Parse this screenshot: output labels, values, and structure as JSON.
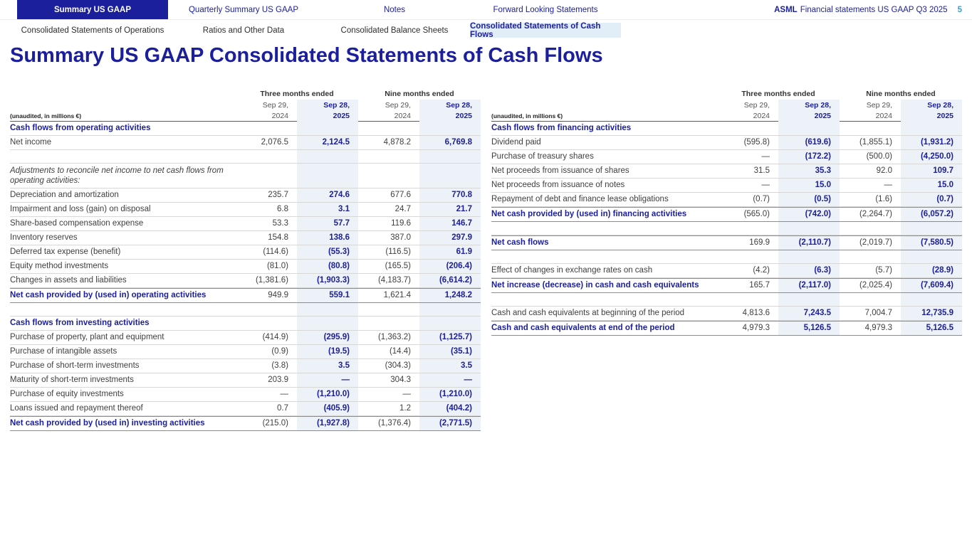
{
  "colors": {
    "navy": "#1b1f9c",
    "page_number_blue": "#3a9fd9",
    "highlight_column_bg": "#edf1f8",
    "active_subnav_bg": "#e1edf7"
  },
  "top_nav": {
    "tabs": [
      {
        "label": "Summary US GAAP",
        "active": true
      },
      {
        "label": "Quarterly Summary US GAAP",
        "active": false
      },
      {
        "label": "Notes",
        "active": false
      },
      {
        "label": "Forward Looking Statements",
        "active": false
      }
    ],
    "brand": "ASML",
    "doc_title": "Financial statements US GAAP Q3 2025",
    "page_number": "5"
  },
  "sub_nav": [
    {
      "label": "Consolidated Statements of Operations",
      "active": false
    },
    {
      "label": "Ratios and Other Data",
      "active": false
    },
    {
      "label": "Consolidated Balance Sheets",
      "active": false
    },
    {
      "label": "Consolidated Statements of Cash Flows",
      "active": true
    }
  ],
  "page_title": "Summary US GAAP Consolidated Statements of Cash Flows",
  "header": {
    "unaudited_note": "(unaudited, in millions €)",
    "group_headers": [
      "Three months ended",
      "Nine months ended"
    ],
    "columns": [
      {
        "line1": "Sep 29,",
        "line2": "2024",
        "highlight": false
      },
      {
        "line1": "Sep 28,",
        "line2": "2025",
        "highlight": true
      },
      {
        "line1": "Sep 29,",
        "line2": "2024",
        "highlight": false
      },
      {
        "line1": "Sep 28,",
        "line2": "2025",
        "highlight": true
      }
    ]
  },
  "tables": {
    "left": {
      "rows": [
        {
          "type": "section",
          "label": "Cash flows from operating activities"
        },
        {
          "type": "data",
          "label": "Net income",
          "values": [
            "2,076.5",
            "2,124.5",
            "4,878.2",
            "6,769.8"
          ]
        },
        {
          "type": "spacer"
        },
        {
          "type": "note",
          "label": "Adjustments to reconcile net income to net cash flows from operating activities:"
        },
        {
          "type": "data",
          "label": "Depreciation and amortization",
          "values": [
            "235.7",
            "274.6",
            "677.6",
            "770.8"
          ]
        },
        {
          "type": "data",
          "label": "Impairment and loss (gain) on disposal",
          "values": [
            "6.8",
            "3.1",
            "24.7",
            "21.7"
          ]
        },
        {
          "type": "data",
          "label": "Share-based compensation expense",
          "values": [
            "53.3",
            "57.7",
            "119.6",
            "146.7"
          ]
        },
        {
          "type": "data",
          "label": "Inventory reserves",
          "values": [
            "154.8",
            "138.6",
            "387.0",
            "297.9"
          ]
        },
        {
          "type": "data",
          "label": "Deferred tax expense (benefit)",
          "values": [
            "(114.6)",
            "(55.3)",
            "(116.5)",
            "61.9"
          ]
        },
        {
          "type": "data",
          "label": "Equity method investments",
          "values": [
            "(81.0)",
            "(80.8)",
            "(165.5)",
            "(206.4)"
          ]
        },
        {
          "type": "data",
          "label": "Changes in assets and liabilities",
          "values": [
            "(1,381.6)",
            "(1,903.3)",
            "(4,183.7)",
            "(6,614.2)"
          ]
        },
        {
          "type": "total",
          "label": "Net cash provided by (used in) operating activities",
          "values": [
            "949.9",
            "559.1",
            "1,621.4",
            "1,248.2"
          ]
        },
        {
          "type": "spacer"
        },
        {
          "type": "section",
          "label": "Cash flows from investing activities"
        },
        {
          "type": "data",
          "label": "Purchase of property, plant and equipment",
          "values": [
            "(414.9)",
            "(295.9)",
            "(1,363.2)",
            "(1,125.7)"
          ]
        },
        {
          "type": "data",
          "label": "Purchase of intangible assets",
          "values": [
            "(0.9)",
            "(19.5)",
            "(14.4)",
            "(35.1)"
          ]
        },
        {
          "type": "data",
          "label": "Purchase of short-term investments",
          "values": [
            "(3.8)",
            "3.5",
            "(304.3)",
            "3.5"
          ]
        },
        {
          "type": "data",
          "label": "Maturity of short-term investments",
          "values": [
            "203.9",
            "—",
            "304.3",
            "—"
          ]
        },
        {
          "type": "data",
          "label": "Purchase of equity investments",
          "values": [
            "—",
            "(1,210.0)",
            "—",
            "(1,210.0)"
          ]
        },
        {
          "type": "data",
          "label": "Loans issued and repayment thereof",
          "values": [
            "0.7",
            "(405.9)",
            "1.2",
            "(404.2)"
          ]
        },
        {
          "type": "total",
          "label": "Net cash provided by (used in) investing activities",
          "values": [
            "(215.0)",
            "(1,927.8)",
            "(1,376.4)",
            "(2,771.5)"
          ]
        }
      ]
    },
    "right": {
      "rows": [
        {
          "type": "section",
          "label": "Cash flows from financing activities"
        },
        {
          "type": "data",
          "label": "Dividend paid",
          "values": [
            "(595.8)",
            "(619.6)",
            "(1,855.1)",
            "(1,931.2)"
          ]
        },
        {
          "type": "data",
          "label": "Purchase of treasury shares",
          "values": [
            "—",
            "(172.2)",
            "(500.0)",
            "(4,250.0)"
          ]
        },
        {
          "type": "data",
          "label": "Net proceeds from issuance of shares",
          "values": [
            "31.5",
            "35.3",
            "92.0",
            "109.7"
          ]
        },
        {
          "type": "data",
          "label": "Net proceeds from issuance of notes",
          "values": [
            "—",
            "15.0",
            "—",
            "15.0"
          ]
        },
        {
          "type": "data",
          "label": "Repayment of debt and finance lease obligations",
          "values": [
            "(0.7)",
            "(0.5)",
            "(1.6)",
            "(0.7)"
          ]
        },
        {
          "type": "total",
          "label": "Net cash provided by (used in) financing activities",
          "values": [
            "(565.0)",
            "(742.0)",
            "(2,264.7)",
            "(6,057.2)"
          ]
        },
        {
          "type": "spacer"
        },
        {
          "type": "total",
          "label": "Net cash flows",
          "values": [
            "169.9",
            "(2,110.7)",
            "(2,019.7)",
            "(7,580.5)"
          ]
        },
        {
          "type": "spacer"
        },
        {
          "type": "data",
          "label": "Effect of changes in exchange rates on cash",
          "values": [
            "(4.2)",
            "(6.3)",
            "(5.7)",
            "(28.9)"
          ]
        },
        {
          "type": "total",
          "label": "Net increase (decrease) in cash and cash equivalents",
          "values": [
            "165.7",
            "(2,117.0)",
            "(2,025.4)",
            "(7,609.4)"
          ]
        },
        {
          "type": "spacer"
        },
        {
          "type": "data",
          "label": "Cash and cash equivalents at beginning of the period",
          "values": [
            "4,813.6",
            "7,243.5",
            "7,004.7",
            "12,735.9"
          ]
        },
        {
          "type": "total",
          "label": "Cash and cash equivalents at end of the period",
          "values": [
            "4,979.3",
            "5,126.5",
            "4,979.3",
            "5,126.5"
          ]
        }
      ]
    }
  }
}
